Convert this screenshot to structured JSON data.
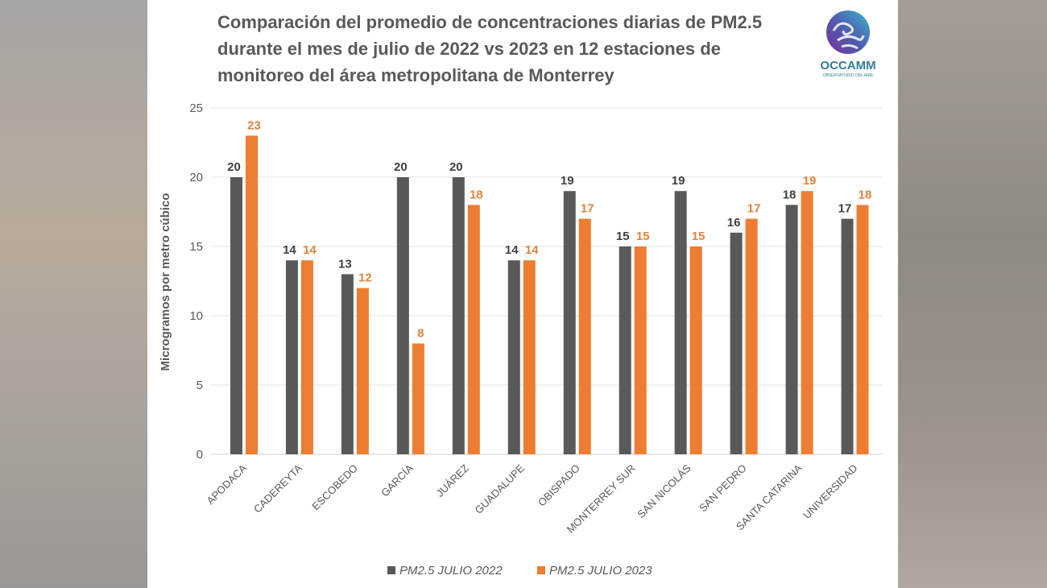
{
  "chart_data": {
    "type": "bar",
    "title_lines": [
      "Comparación del promedio de concentraciones diarias de PM2.5",
      "durante el mes de julio de 2022 vs 2023 en 12 estaciones de",
      "monitoreo del área metropolitana de Monterrey"
    ],
    "ylabel": "Microgramos por metro cúbico",
    "xlabel": "",
    "ylim": [
      0,
      25
    ],
    "yticks": [
      0,
      5,
      10,
      15,
      20,
      25
    ],
    "grid": true,
    "legend_position": "bottom",
    "categories": [
      "APODACA",
      "CADEREYTA",
      "ESCOBEDO",
      "GARCÍA",
      "JUÁREZ",
      "GUADALUPE",
      "OBISPADO",
      "MONTERREY SUR",
      "SAN NICOLÁS",
      "SAN PEDRO",
      "SANTA CATARINA",
      "UNIVERSIDAD"
    ],
    "series": [
      {
        "name": "PM2.5 JULIO 2022",
        "color": "#595959",
        "label_color": "#404040",
        "values": [
          20,
          14,
          13,
          20,
          20,
          14,
          19,
          15,
          19,
          16,
          18,
          17
        ]
      },
      {
        "name": "PM2.5 JULIO 2023",
        "color": "#ED7D31",
        "label_color": "#E0843F",
        "values": [
          23,
          14,
          12,
          8,
          18,
          14,
          17,
          15,
          15,
          17,
          19,
          18
        ]
      }
    ]
  },
  "logo": {
    "name": "OCCAMM",
    "subtitle": "OBSERVATORIO DEL AIRE"
  }
}
